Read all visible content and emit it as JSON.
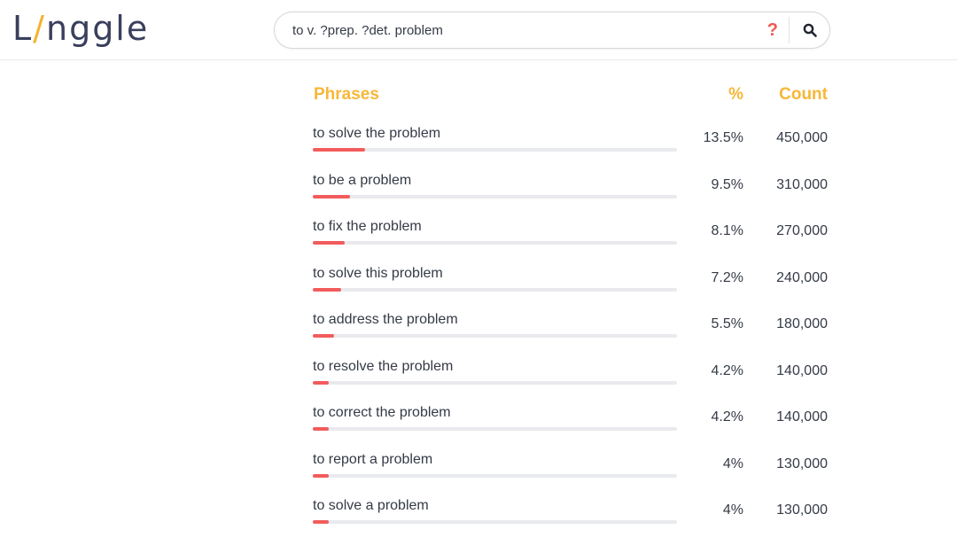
{
  "app": {
    "logo_left": "L",
    "logo_slash": "/",
    "logo_right": "nggle"
  },
  "search": {
    "value": "to v. ?prep. ?det. problem",
    "help_label": "?",
    "icon": "search-icon"
  },
  "colors": {
    "accent": "#f7b738",
    "bar": "#f25c5c",
    "help": "#f0574f"
  },
  "table": {
    "headers": {
      "phrase": "Phrases",
      "percent": "%",
      "count": "Count"
    },
    "rows": [
      {
        "phrase": "to solve the problem",
        "percent": "13.5%",
        "count": "450,000",
        "fraction": 0.135
      },
      {
        "phrase": "to be a problem",
        "percent": "9.5%",
        "count": "310,000",
        "fraction": 0.095
      },
      {
        "phrase": "to fix the problem",
        "percent": "8.1%",
        "count": "270,000",
        "fraction": 0.081
      },
      {
        "phrase": "to solve this problem",
        "percent": "7.2%",
        "count": "240,000",
        "fraction": 0.072
      },
      {
        "phrase": "to address the problem",
        "percent": "5.5%",
        "count": "180,000",
        "fraction": 0.055
      },
      {
        "phrase": "to resolve the problem",
        "percent": "4.2%",
        "count": "140,000",
        "fraction": 0.042
      },
      {
        "phrase": "to correct the problem",
        "percent": "4.2%",
        "count": "140,000",
        "fraction": 0.042
      },
      {
        "phrase": "to report a problem",
        "percent": "4%",
        "count": "130,000",
        "fraction": 0.04
      },
      {
        "phrase": "to solve a problem",
        "percent": "4%",
        "count": "130,000",
        "fraction": 0.04
      }
    ]
  }
}
